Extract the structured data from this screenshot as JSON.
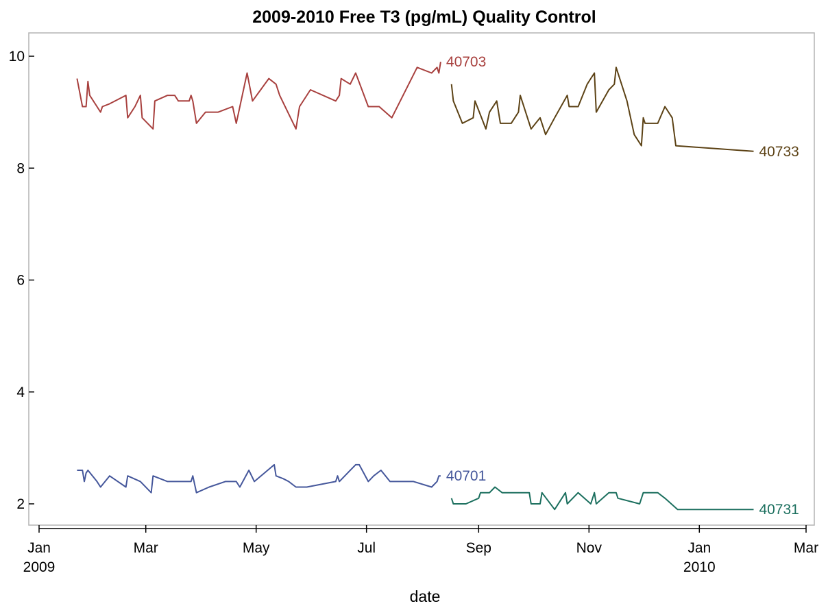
{
  "chart_data": {
    "type": "line",
    "title": "2009-2010 Free T3 (pg/mL) Quality Control",
    "xlabel": "date",
    "ylabel": "",
    "xlim": [
      "2009-01-01",
      "2010-03-01"
    ],
    "ylim": [
      1.6,
      10.4
    ],
    "x_ticks": [
      {
        "date": "2009-01-01",
        "label": "Jan",
        "sub": "2009"
      },
      {
        "date": "2009-03-01",
        "label": "Mar",
        "sub": ""
      },
      {
        "date": "2009-05-01",
        "label": "May",
        "sub": ""
      },
      {
        "date": "2009-07-01",
        "label": "Jul",
        "sub": ""
      },
      {
        "date": "2009-09-01",
        "label": "Sep",
        "sub": ""
      },
      {
        "date": "2009-11-01",
        "label": "Nov",
        "sub": ""
      },
      {
        "date": "2010-01-01",
        "label": "Jan",
        "sub": "2010"
      },
      {
        "date": "2010-03-01",
        "label": "Mar",
        "sub": ""
      }
    ],
    "y_ticks": [
      2,
      4,
      6,
      8,
      10
    ],
    "grid": false,
    "series": [
      {
        "name": "40703",
        "color": "#a8403e",
        "points": [
          [
            "2009-01-22",
            9.6
          ],
          [
            "2009-01-25",
            9.1
          ],
          [
            "2009-01-27",
            9.1
          ],
          [
            "2009-01-28",
            9.55
          ],
          [
            "2009-01-29",
            9.3
          ],
          [
            "2009-02-02",
            9.1
          ],
          [
            "2009-02-04",
            9.0
          ],
          [
            "2009-02-05",
            9.1
          ],
          [
            "2009-02-09",
            9.15
          ],
          [
            "2009-02-18",
            9.3
          ],
          [
            "2009-02-19",
            8.9
          ],
          [
            "2009-02-23",
            9.1
          ],
          [
            "2009-02-26",
            9.3
          ],
          [
            "2009-02-27",
            8.9
          ],
          [
            "2009-03-05",
            8.7
          ],
          [
            "2009-03-06",
            9.2
          ],
          [
            "2009-03-13",
            9.3
          ],
          [
            "2009-03-17",
            9.3
          ],
          [
            "2009-03-19",
            9.2
          ],
          [
            "2009-03-25",
            9.2
          ],
          [
            "2009-03-26",
            9.3
          ],
          [
            "2009-03-27",
            9.2
          ],
          [
            "2009-03-29",
            8.8
          ],
          [
            "2009-04-03",
            9.0
          ],
          [
            "2009-04-10",
            9.0
          ],
          [
            "2009-04-18",
            9.1
          ],
          [
            "2009-04-20",
            8.8
          ],
          [
            "2009-04-26",
            9.7
          ],
          [
            "2009-04-29",
            9.2
          ],
          [
            "2009-05-08",
            9.6
          ],
          [
            "2009-05-12",
            9.5
          ],
          [
            "2009-05-14",
            9.3
          ],
          [
            "2009-05-23",
            8.7
          ],
          [
            "2009-05-25",
            9.1
          ],
          [
            "2009-05-31",
            9.4
          ],
          [
            "2009-06-14",
            9.2
          ],
          [
            "2009-06-16",
            9.3
          ],
          [
            "2009-06-17",
            9.6
          ],
          [
            "2009-06-22",
            9.5
          ],
          [
            "2009-06-25",
            9.7
          ],
          [
            "2009-07-02",
            9.1
          ],
          [
            "2009-07-08",
            9.1
          ],
          [
            "2009-07-15",
            8.9
          ],
          [
            "2009-07-29",
            9.8
          ],
          [
            "2009-08-06",
            9.7
          ],
          [
            "2009-08-09",
            9.8
          ],
          [
            "2009-08-10",
            9.7
          ],
          [
            "2009-08-11",
            9.9
          ]
        ]
      },
      {
        "name": "40733",
        "color": "#5c4215",
        "points": [
          [
            "2009-08-17",
            9.5
          ],
          [
            "2009-08-18",
            9.2
          ],
          [
            "2009-08-23",
            8.8
          ],
          [
            "2009-08-29",
            8.9
          ],
          [
            "2009-08-30",
            9.2
          ],
          [
            "2009-09-05",
            8.7
          ],
          [
            "2009-09-07",
            9.0
          ],
          [
            "2009-09-11",
            9.2
          ],
          [
            "2009-09-13",
            8.8
          ],
          [
            "2009-09-18",
            8.8
          ],
          [
            "2009-09-19",
            8.8
          ],
          [
            "2009-09-23",
            9.0
          ],
          [
            "2009-09-24",
            9.3
          ],
          [
            "2009-09-30",
            8.7
          ],
          [
            "2009-10-05",
            8.9
          ],
          [
            "2009-10-08",
            8.6
          ],
          [
            "2009-10-13",
            8.9
          ],
          [
            "2009-10-20",
            9.3
          ],
          [
            "2009-10-21",
            9.1
          ],
          [
            "2009-10-26",
            9.1
          ],
          [
            "2009-10-31",
            9.5
          ],
          [
            "2009-11-02",
            9.6
          ],
          [
            "2009-11-04",
            9.7
          ],
          [
            "2009-11-05",
            9.0
          ],
          [
            "2009-11-12",
            9.4
          ],
          [
            "2009-11-15",
            9.5
          ],
          [
            "2009-11-16",
            9.8
          ],
          [
            "2009-11-22",
            9.2
          ],
          [
            "2009-11-26",
            8.6
          ],
          [
            "2009-11-30",
            8.4
          ],
          [
            "2009-12-01",
            8.9
          ],
          [
            "2009-12-02",
            8.8
          ],
          [
            "2009-12-05",
            8.8
          ],
          [
            "2009-12-09",
            8.8
          ],
          [
            "2009-12-13",
            9.1
          ],
          [
            "2009-12-17",
            8.9
          ],
          [
            "2009-12-19",
            8.4
          ],
          [
            "2010-01-31",
            8.3
          ]
        ]
      },
      {
        "name": "40701",
        "color": "#45579b",
        "points": [
          [
            "2009-01-22",
            2.6
          ],
          [
            "2009-01-25",
            2.6
          ],
          [
            "2009-01-26",
            2.4
          ],
          [
            "2009-01-27",
            2.55
          ],
          [
            "2009-01-28",
            2.6
          ],
          [
            "2009-02-02",
            2.4
          ],
          [
            "2009-02-04",
            2.3
          ],
          [
            "2009-02-09",
            2.5
          ],
          [
            "2009-02-18",
            2.3
          ],
          [
            "2009-02-19",
            2.5
          ],
          [
            "2009-02-26",
            2.4
          ],
          [
            "2009-03-04",
            2.2
          ],
          [
            "2009-03-05",
            2.5
          ],
          [
            "2009-03-13",
            2.4
          ],
          [
            "2009-03-26",
            2.4
          ],
          [
            "2009-03-27",
            2.5
          ],
          [
            "2009-03-29",
            2.2
          ],
          [
            "2009-04-05",
            2.3
          ],
          [
            "2009-04-14",
            2.4
          ],
          [
            "2009-04-20",
            2.4
          ],
          [
            "2009-04-22",
            2.3
          ],
          [
            "2009-04-27",
            2.6
          ],
          [
            "2009-04-30",
            2.4
          ],
          [
            "2009-05-11",
            2.7
          ],
          [
            "2009-05-12",
            2.5
          ],
          [
            "2009-05-16",
            2.45
          ],
          [
            "2009-05-19",
            2.4
          ],
          [
            "2009-05-23",
            2.3
          ],
          [
            "2009-05-29",
            2.3
          ],
          [
            "2009-06-14",
            2.4
          ],
          [
            "2009-06-15",
            2.5
          ],
          [
            "2009-06-16",
            2.4
          ],
          [
            "2009-06-25",
            2.7
          ],
          [
            "2009-06-27",
            2.7
          ],
          [
            "2009-07-02",
            2.4
          ],
          [
            "2009-07-05",
            2.5
          ],
          [
            "2009-07-09",
            2.6
          ],
          [
            "2009-07-14",
            2.4
          ],
          [
            "2009-07-27",
            2.4
          ],
          [
            "2009-08-06",
            2.3
          ],
          [
            "2009-08-09",
            2.4
          ],
          [
            "2009-08-10",
            2.5
          ],
          [
            "2009-08-11",
            2.5
          ]
        ]
      },
      {
        "name": "40731",
        "color": "#1b6f5e",
        "points": [
          [
            "2009-08-17",
            2.1
          ],
          [
            "2009-08-18",
            2.0
          ],
          [
            "2009-08-25",
            2.0
          ],
          [
            "2009-09-01",
            2.1
          ],
          [
            "2009-09-02",
            2.2
          ],
          [
            "2009-09-07",
            2.2
          ],
          [
            "2009-09-10",
            2.3
          ],
          [
            "2009-09-14",
            2.2
          ],
          [
            "2009-09-29",
            2.2
          ],
          [
            "2009-09-30",
            2.0
          ],
          [
            "2009-10-05",
            2.0
          ],
          [
            "2009-10-06",
            2.2
          ],
          [
            "2009-10-13",
            1.9
          ],
          [
            "2009-10-19",
            2.2
          ],
          [
            "2009-10-20",
            2.0
          ],
          [
            "2009-10-26",
            2.2
          ],
          [
            "2009-11-02",
            2.0
          ],
          [
            "2009-11-04",
            2.2
          ],
          [
            "2009-11-05",
            2.0
          ],
          [
            "2009-11-12",
            2.2
          ],
          [
            "2009-11-16",
            2.2
          ],
          [
            "2009-11-17",
            2.1
          ],
          [
            "2009-11-29",
            2.0
          ],
          [
            "2009-12-01",
            2.2
          ],
          [
            "2009-12-09",
            2.2
          ],
          [
            "2009-12-13",
            2.1
          ],
          [
            "2009-12-20",
            1.9
          ],
          [
            "2010-01-31",
            1.9
          ]
        ]
      }
    ]
  }
}
